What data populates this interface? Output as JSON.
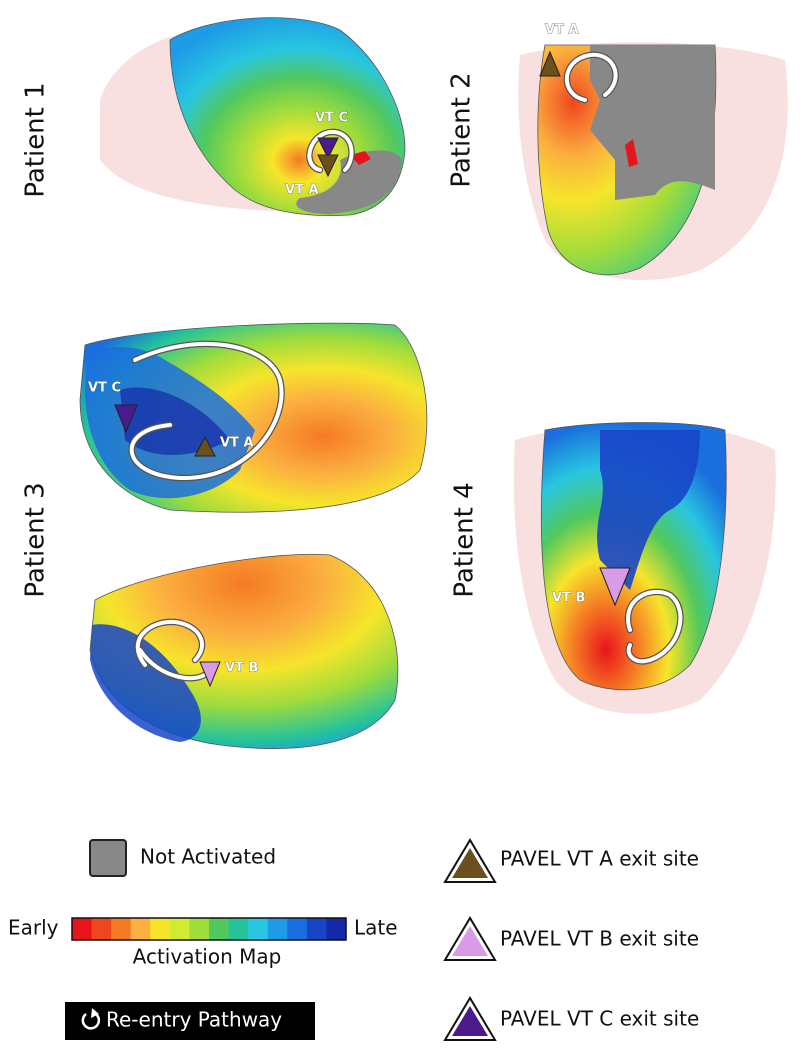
{
  "panels": [
    {
      "label": "Patient 1",
      "annotations": [
        "VT C",
        "VT A"
      ]
    },
    {
      "label": "Patient 2",
      "annotations": [
        "VT A"
      ]
    },
    {
      "label": "Patient 3",
      "annotations": [
        "VT C",
        "VT A",
        "VT B"
      ]
    },
    {
      "label": "Patient 4",
      "annotations": [
        "VT B"
      ]
    }
  ],
  "legend": {
    "not_activated": "Not Activated",
    "scale": {
      "start": "Early",
      "end": "Late",
      "title": "Activation Map",
      "colors": [
        "#e8141c",
        "#f0461e",
        "#f57a24",
        "#fbb040",
        "#f6e52b",
        "#d2ea2f",
        "#9fdc3c",
        "#52c95c",
        "#25c39a",
        "#28c6e0",
        "#1e9be6",
        "#1b6ede",
        "#1845c8",
        "#1428a8"
      ]
    },
    "reentry": "Re-entry Pathway",
    "exit_sites": [
      {
        "label": "PAVEL VT A exit site",
        "color": "#6b4f1d"
      },
      {
        "label": "PAVEL VT B exit site",
        "color": "#d99be6"
      },
      {
        "label": "PAVEL VT C exit site",
        "color": "#4b1a8c"
      }
    ]
  }
}
